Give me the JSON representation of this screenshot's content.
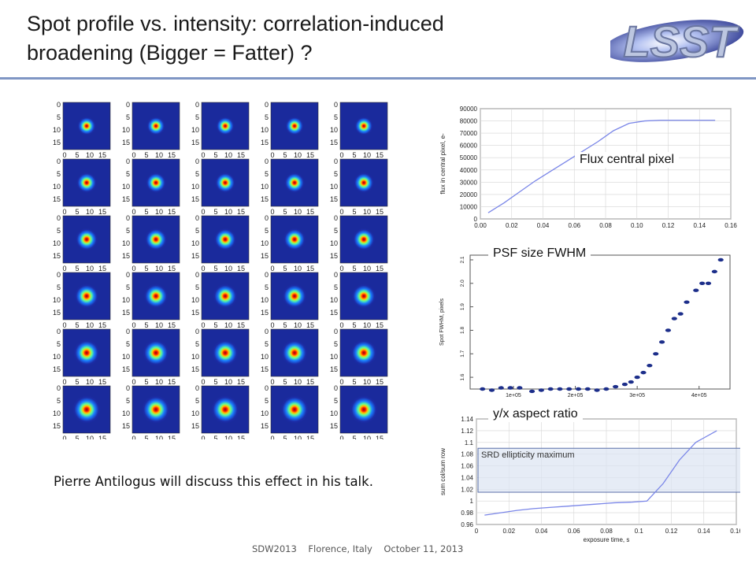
{
  "slide": {
    "title": "Spot profile vs. intensity: correlation-induced\nbroadening (Bigger = Fatter) ?",
    "logo_text": "LSST",
    "caption": "Pierre Antilogus will discuss this effect in his talk.",
    "footer": "SDW2013    Florence, Italy    October 11, 2013",
    "colors": {
      "rule": "#7f96c4",
      "plot_line": "#7a86e8",
      "spot_bg": "#1a2a9c",
      "srd_band": "#dbe4f2"
    }
  },
  "spot_grid": {
    "rows": 6,
    "cols": 5,
    "x_ticks": [
      "0",
      "5",
      "10",
      "15"
    ],
    "y_ticks": [
      "0",
      "5",
      "10",
      "15"
    ]
  },
  "chart_data": [
    {
      "type": "line",
      "label": "Flux central pixel",
      "ylabel": "flux in central pixel, e-",
      "xlabel": "",
      "xlim": [
        0,
        0.16
      ],
      "ylim": [
        0,
        90000
      ],
      "x_ticks": [
        "0.00",
        "0.02",
        "0.04",
        "0.06",
        "0.08",
        "0.10",
        "0.12",
        "0.14",
        "0.16"
      ],
      "y_ticks": [
        "0",
        "10000",
        "20000",
        "30000",
        "40000",
        "50000",
        "60000",
        "70000",
        "80000",
        "90000"
      ],
      "x": [
        0.005,
        0.015,
        0.025,
        0.035,
        0.045,
        0.055,
        0.065,
        0.075,
        0.085,
        0.095,
        0.105,
        0.115,
        0.15
      ],
      "y": [
        5000,
        13000,
        22000,
        31000,
        39000,
        47000,
        55000,
        63000,
        72000,
        78000,
        80000,
        80500,
        80500
      ],
      "grid": true
    },
    {
      "type": "scatter",
      "label": "PSF size FWHM",
      "ylabel": "Spot FWHM, pixels",
      "xlabel": "",
      "ylim": [
        1.55,
        2.12
      ],
      "y_ticks": [
        "1.6",
        "1.7",
        "1.8",
        "1.9",
        "2.0",
        "2.1"
      ],
      "x_ticks": [
        "1e+05",
        "2e+05",
        "3e+05",
        "4e+05"
      ],
      "x": [
        0.5,
        0.65,
        0.8,
        0.95,
        1.1,
        1.3,
        1.45,
        1.6,
        1.75,
        1.9,
        2.05,
        2.2,
        2.35,
        2.5,
        2.65,
        2.8,
        2.9,
        3.0,
        3.1,
        3.2,
        3.3,
        3.4,
        3.5,
        3.6,
        3.7,
        3.8,
        3.95,
        4.05,
        4.15,
        4.25,
        4.35
      ],
      "y": [
        1.55,
        1.545,
        1.555,
        1.555,
        1.555,
        1.54,
        1.545,
        1.55,
        1.55,
        1.55,
        1.55,
        1.55,
        1.545,
        1.55,
        1.56,
        1.57,
        1.58,
        1.6,
        1.62,
        1.65,
        1.7,
        1.75,
        1.8,
        1.85,
        1.87,
        1.92,
        1.97,
        2.0,
        2.0,
        2.05,
        2.1
      ]
    },
    {
      "type": "line",
      "label": "y/x aspect ratio",
      "ylabel": "sum col/sum row",
      "xlabel": "exposure time, s",
      "xlim": [
        0,
        0.16
      ],
      "ylim": [
        0.96,
        1.14
      ],
      "x_ticks": [
        "0",
        "0.02",
        "0.04",
        "0.06",
        "0.08",
        "0.1",
        "0.12",
        "0.14",
        "0.16"
      ],
      "y_ticks": [
        "0.96",
        "0.98",
        "1",
        "1.02",
        "1.04",
        "1.06",
        "1.08",
        "1.1",
        "1.12",
        "1.14"
      ],
      "x": [
        0.005,
        0.015,
        0.025,
        0.035,
        0.045,
        0.055,
        0.065,
        0.075,
        0.085,
        0.095,
        0.105,
        0.115,
        0.125,
        0.135,
        0.148
      ],
      "y": [
        0.976,
        0.98,
        0.984,
        0.987,
        0.989,
        0.991,
        0.993,
        0.995,
        0.997,
        0.998,
        1.0,
        1.03,
        1.07,
        1.1,
        1.12
      ],
      "band_label": "SRD ellipticity maximum",
      "band": [
        1.015,
        1.09
      ]
    }
  ]
}
